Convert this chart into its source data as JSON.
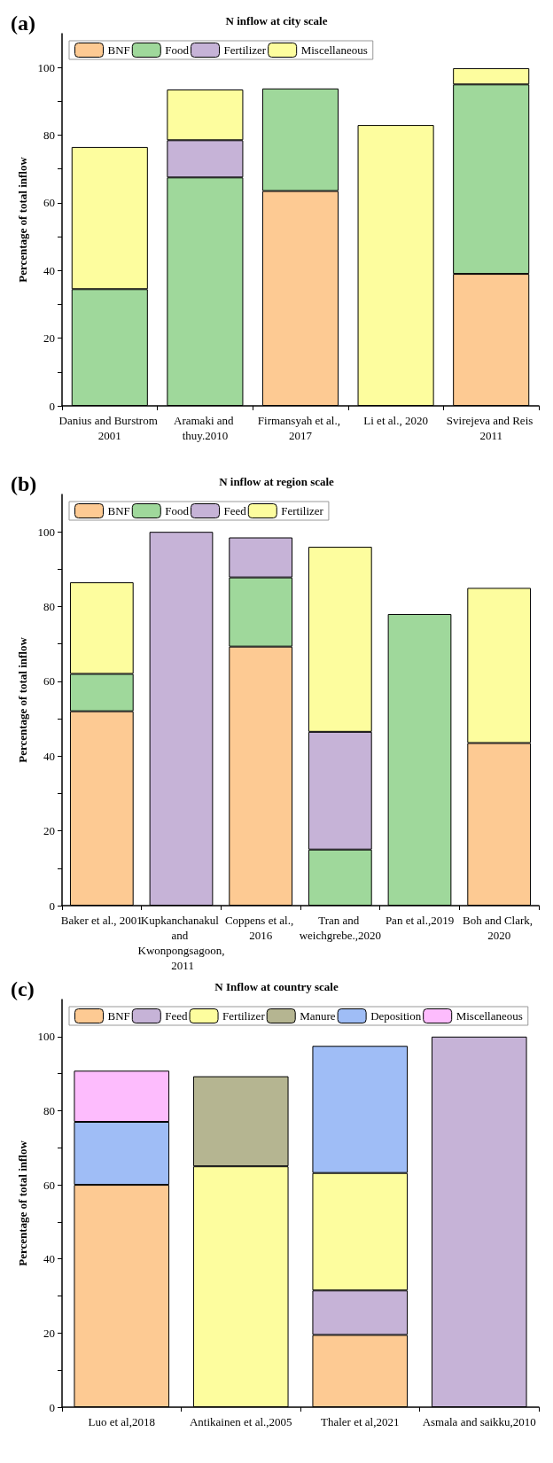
{
  "chart_data": [
    {
      "type": "bar",
      "title": "N inflow at city scale",
      "ylabel": "Percentage of total inflow",
      "annotations": [
        "(a)"
      ],
      "stacked": true,
      "categories": [
        "Danius and Burstrom 2001",
        "Aramaki and thuy.2010",
        "Firmansyah et al., 2017",
        "Li et al., 2020",
        "Svirejeva and Reis 2011"
      ],
      "series": [
        {
          "name": "BNF",
          "color": "#fdca93",
          "values": [
            null,
            null,
            63.5,
            null,
            39
          ]
        },
        {
          "name": "Food",
          "color": "#9fd89b",
          "values": [
            34.5,
            67.5,
            30.3,
            null,
            56
          ]
        },
        {
          "name": "Fertilizer",
          "color": "#c6b3d7",
          "values": [
            null,
            11,
            null,
            null,
            null
          ]
        },
        {
          "name": "Miscellaneous",
          "color": "#fdfd9e",
          "values": [
            42,
            15,
            null,
            83,
            4.8
          ]
        }
      ],
      "ylim": [
        0,
        110
      ],
      "yticks": [
        0,
        {
          "value": 10,
          "label": null
        },
        20,
        {
          "value": 30,
          "label": null
        },
        40,
        {
          "value": 50,
          "label": null
        },
        60,
        {
          "value": 70,
          "label": null
        },
        80,
        {
          "value": 90,
          "label": null
        },
        100
      ],
      "grid": false,
      "legend": "top"
    },
    {
      "type": "bar",
      "title": "N inflow at region scale",
      "ylabel": "Percentage of total inflow",
      "annotations": [
        "(b)"
      ],
      "stacked": true,
      "categories": [
        "Baker et al., 2001",
        "Kupkanchanakul and Kwonpongsagoon, 2011",
        "Coppens et al., 2016",
        "Tran and weichgrebe.,2020",
        "Pan et al.,2019",
        "Boh and Clark, 2020"
      ],
      "series": [
        {
          "name": "BNF",
          "color": "#fdca93",
          "values": [
            52,
            null,
            69.3,
            null,
            null,
            43.5
          ]
        },
        {
          "name": "Food",
          "color": "#9fd89b",
          "values": [
            10,
            null,
            18.5,
            15,
            78,
            null
          ]
        },
        {
          "name": "Feed",
          "color": "#c6b3d7",
          "values": [
            null,
            100,
            10.7,
            31.5,
            null,
            null
          ]
        },
        {
          "name": "Fertilizer",
          "color": "#fdfd9e",
          "values": [
            24.5,
            null,
            null,
            49.5,
            null,
            41.5
          ]
        }
      ],
      "ylim": [
        0,
        110
      ],
      "yticks": [
        0,
        {
          "value": 10,
          "label": null
        },
        20,
        {
          "value": 30,
          "label": null
        },
        40,
        {
          "value": 50,
          "label": null
        },
        60,
        {
          "value": 70,
          "label": null
        },
        80,
        {
          "value": 90,
          "label": null
        },
        100
      ],
      "grid": false,
      "legend": "top"
    },
    {
      "type": "bar",
      "title": "N Inflow at country scale",
      "ylabel": "Percentage of total inflow",
      "annotations": [
        "(c)"
      ],
      "stacked": true,
      "categories": [
        "Luo et al,2018",
        "Antikainen et al.,2005",
        "Thaler et al,2021",
        "Asmala and saikku,2010"
      ],
      "series": [
        {
          "name": "BNF",
          "color": "#fdca93",
          "values": [
            60,
            null,
            19.5,
            null
          ]
        },
        {
          "name": "Feed",
          "color": "#c6b3d7",
          "values": [
            null,
            null,
            12,
            100
          ]
        },
        {
          "name": "Fertilizer",
          "color": "#fdfd9e",
          "values": [
            null,
            65,
            31.7,
            null
          ]
        },
        {
          "name": "Manure",
          "color": "#b5b591",
          "values": [
            null,
            24.3,
            null,
            null
          ]
        },
        {
          "name": "Deposition",
          "color": "#9fbdf6",
          "values": [
            17,
            null,
            34.3,
            null
          ]
        },
        {
          "name": "Miscellaneous",
          "color": "#fdbcfd",
          "values": [
            13.8,
            null,
            null,
            null
          ]
        }
      ],
      "ylim": [
        0,
        110
      ],
      "yticks": [
        0,
        {
          "value": 10,
          "label": null
        },
        20,
        {
          "value": 30,
          "label": null
        },
        40,
        {
          "value": 50,
          "label": null
        },
        60,
        {
          "value": 70,
          "label": null
        },
        80,
        {
          "value": 90,
          "label": null
        },
        100
      ],
      "grid": false,
      "legend": "top"
    }
  ]
}
